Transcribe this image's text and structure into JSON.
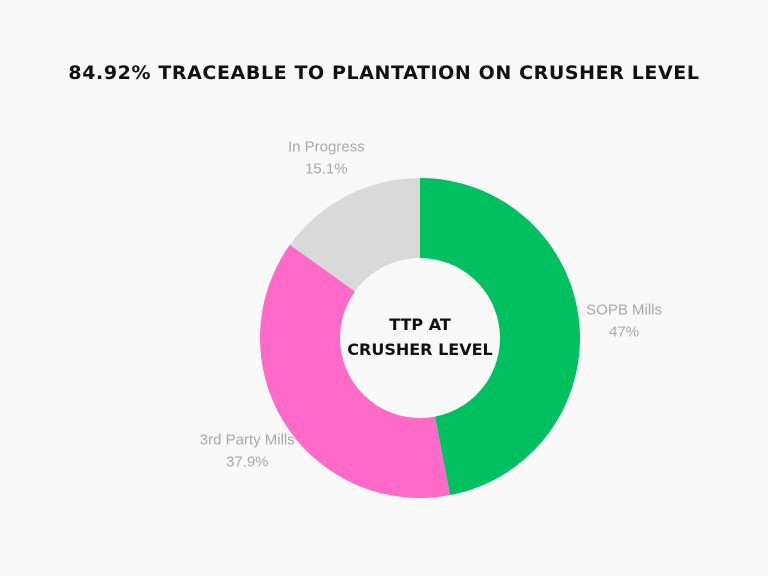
{
  "chart_data": {
    "type": "pie",
    "title": "84.92% TRACEABLE TO PLANTATION ON CRUSHER LEVEL",
    "center_label": [
      "TTP AT",
      "CRUSHER LEVEL"
    ],
    "slices": [
      {
        "name": "SOPB Mills",
        "value": 47,
        "display": "47%",
        "color": "#00c060"
      },
      {
        "name": "3rd Party Mills",
        "value": 37.9,
        "display": "37.9%",
        "color": "#ff6ac8"
      },
      {
        "name": "In Progress",
        "value": 15.1,
        "display": "15.1%",
        "color": "#d9d9d9"
      }
    ],
    "legend": "none",
    "start_angle": "top, clockwise"
  }
}
